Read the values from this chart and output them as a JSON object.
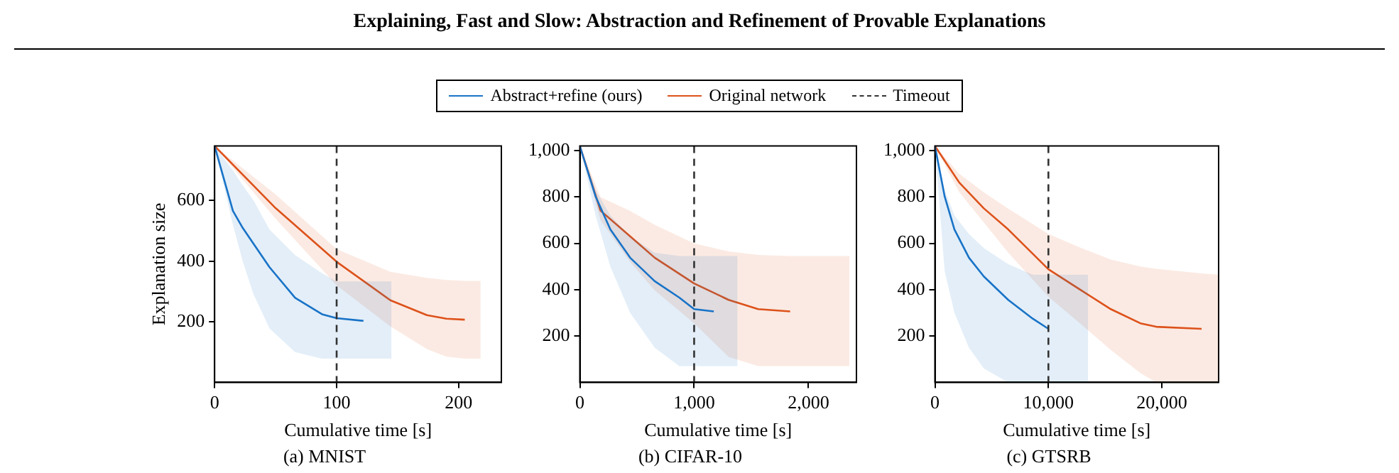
{
  "chart_data": [
    {
      "type": "line",
      "title": "(a) MNIST",
      "xlabel": "Cumulative time [s]",
      "ylabel": "Explanation size",
      "annotations": [
        "Explaining, Fast and Slow: Abstraction and Refinement of Provable Explanations"
      ],
      "legend": "top",
      "xlim": [
        0,
        235
      ],
      "xticks": [
        0,
        100,
        200
      ],
      "ylim": [
        0,
        780
      ],
      "yticks": [
        200,
        400,
        600
      ],
      "ref_lines": [
        {
          "axis": "x",
          "value": 100,
          "label": "Timeout",
          "color": "#333333",
          "line_style": "dashed"
        }
      ],
      "series": [
        {
          "name": "Abstract+refine (ours)",
          "color": "#1a74c8",
          "x": [
            0,
            15,
            23,
            32,
            45,
            66,
            88,
            100,
            122,
            145
          ],
          "values": [
            780,
            566,
            510,
            457,
            380,
            279,
            225,
            212,
            203,
            null
          ],
          "upper": [
            780,
            700,
            650,
            600,
            504,
            420,
            360,
            333,
            333,
            333
          ],
          "lower": [
            780,
            520,
            400,
            290,
            178,
            100,
            78,
            78,
            78,
            78
          ]
        },
        {
          "name": "Original network",
          "color": "#dd531c",
          "x": [
            0,
            50,
            100,
            144,
            174,
            190,
            205,
            218
          ],
          "values": [
            780,
            575,
            398,
            271,
            222,
            210,
            207,
            null
          ],
          "upper": [
            780,
            620,
            440,
            365,
            345,
            338,
            335,
            335
          ],
          "lower": [
            780,
            540,
            320,
            185,
            110,
            85,
            78,
            78
          ]
        }
      ]
    },
    {
      "type": "line",
      "title": "(b) CIFAR-10",
      "xlabel": "Cumulative time [s]",
      "xlim": [
        0,
        2420
      ],
      "xticks": [
        0,
        {
          "value": 1000,
          "label": "1,000"
        },
        {
          "value": 2000,
          "label": "2,000"
        }
      ],
      "ylim": [
        0,
        1020
      ],
      "yticks": [
        200,
        400,
        600,
        800,
        {
          "value": 1000,
          "label": "1,000"
        }
      ],
      "ref_lines": [
        {
          "axis": "x",
          "value": 1000,
          "color": "#333333",
          "line_style": "dashed"
        }
      ],
      "series": [
        {
          "color": "#1a74c8",
          "x": [
            0,
            138,
            267,
            440,
            655,
            870,
            1000,
            1172,
            1380
          ],
          "values": [
            1020,
            802,
            660,
            538,
            437,
            366,
            316,
            306,
            null
          ],
          "upper": [
            1020,
            830,
            720,
            630,
            560,
            545,
            545,
            545,
            545
          ],
          "lower": [
            1020,
            720,
            500,
            300,
            150,
            70,
            70,
            70,
            70
          ]
        },
        {
          "color": "#dd531c",
          "x": [
            0,
            181,
            440,
            655,
            1000,
            1302,
            1560,
            1840,
            2358
          ],
          "values": [
            1020,
            741,
            630,
            538,
            427,
            356,
            316,
            306,
            null
          ],
          "upper": [
            1020,
            800,
            740,
            680,
            600,
            565,
            550,
            545,
            545
          ],
          "lower": [
            1020,
            700,
            520,
            397,
            255,
            110,
            70,
            70,
            70
          ]
        }
      ]
    },
    {
      "type": "line",
      "title": "(c) GTSRB",
      "xlabel": "Cumulative time [s]",
      "xlim": [
        0,
        25000
      ],
      "xticks": [
        0,
        {
          "value": 10000,
          "label": "10,000"
        },
        {
          "value": 20000,
          "label": "20,000"
        }
      ],
      "ylim": [
        0,
        1020
      ],
      "yticks": [
        200,
        400,
        600,
        800,
        {
          "value": 1000,
          "label": "1,000"
        }
      ],
      "ref_lines": [
        {
          "axis": "x",
          "value": 10000,
          "color": "#333333",
          "line_style": "dashed"
        }
      ],
      "series": [
        {
          "color": "#1a74c8",
          "x": [
            0,
            860,
            1720,
            3000,
            4310,
            6460,
            8620,
            10000,
            13500
          ],
          "values": [
            1020,
            802,
            660,
            538,
            457,
            356,
            275,
            231,
            null
          ],
          "upper": [
            1020,
            830,
            720,
            640,
            580,
            510,
            465,
            465,
            465
          ],
          "lower": [
            1020,
            480,
            300,
            150,
            60,
            0,
            0,
            0,
            0
          ]
        },
        {
          "color": "#dd531c",
          "x": [
            0,
            2150,
            4310,
            6460,
            10000,
            12900,
            15500,
            18100,
            19500,
            23500,
            25000
          ],
          "values": [
            1020,
            862,
            751,
            660,
            488,
            397,
            316,
            255,
            240,
            231,
            null
          ],
          "upper": [
            1020,
            900,
            820,
            750,
            640,
            580,
            530,
            500,
            490,
            470,
            465
          ],
          "lower": [
            1020,
            820,
            690,
            560,
            370,
            250,
            140,
            40,
            0,
            0,
            0
          ]
        }
      ]
    }
  ]
}
